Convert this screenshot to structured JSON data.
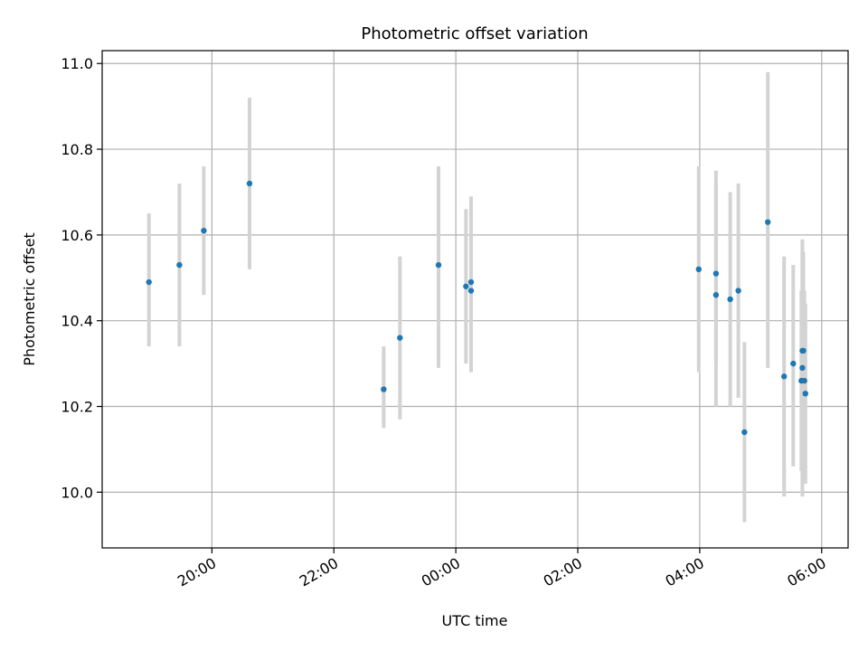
{
  "chart_data": {
    "type": "scatter",
    "title": "Photometric offset variation",
    "xlabel": "UTC time",
    "ylabel": "Photometric offset",
    "xlim": [
      "18:12",
      "06:26"
    ],
    "ylim": [
      9.87,
      11.03
    ],
    "grid": true,
    "x_ticks": [
      "20:00",
      "22:00",
      "00:00",
      "02:00",
      "04:00",
      "06:00"
    ],
    "y_ticks": [
      10.0,
      10.2,
      10.4,
      10.6,
      10.8,
      11.0
    ],
    "y_tick_labels": [
      "10.0",
      "10.2",
      "10.4",
      "10.6",
      "10.8",
      "11.0"
    ],
    "point_color": "#1f77b4",
    "errorbar_color": "#d3d3d3",
    "series": [
      {
        "points": [
          {
            "time": "18:58",
            "y": 10.49,
            "lo": 10.34,
            "hi": 10.65
          },
          {
            "time": "19:28",
            "y": 10.53,
            "lo": 10.34,
            "hi": 10.72
          },
          {
            "time": "19:52",
            "y": 10.61,
            "lo": 10.46,
            "hi": 10.76
          },
          {
            "time": "20:37",
            "y": 10.72,
            "lo": 10.52,
            "hi": 10.92
          },
          {
            "time": "22:49",
            "y": 10.24,
            "lo": 10.15,
            "hi": 10.34
          },
          {
            "time": "23:05",
            "y": 10.36,
            "lo": 10.17,
            "hi": 10.55
          },
          {
            "time": "23:43",
            "y": 10.53,
            "lo": 10.29,
            "hi": 10.76
          },
          {
            "time": "00:10",
            "y": 10.48,
            "lo": 10.3,
            "hi": 10.66
          },
          {
            "time": "00:15",
            "y": 10.47,
            "lo": 10.28,
            "hi": 10.68
          },
          {
            "time": "00:15",
            "y": 10.49,
            "lo": 10.3,
            "hi": 10.69
          },
          {
            "time": "03:59",
            "y": 10.52,
            "lo": 10.28,
            "hi": 10.76
          },
          {
            "time": "04:16",
            "y": 10.46,
            "lo": 10.2,
            "hi": 10.75
          },
          {
            "time": "04:16",
            "y": 10.51,
            "lo": 10.3,
            "hi": 10.72
          },
          {
            "time": "04:30",
            "y": 10.45,
            "lo": 10.2,
            "hi": 10.7
          },
          {
            "time": "04:38",
            "y": 10.47,
            "lo": 10.22,
            "hi": 10.72
          },
          {
            "time": "04:44",
            "y": 10.14,
            "lo": 9.93,
            "hi": 10.35
          },
          {
            "time": "05:07",
            "y": 10.63,
            "lo": 10.29,
            "hi": 10.98
          },
          {
            "time": "05:23",
            "y": 10.27,
            "lo": 9.99,
            "hi": 10.55
          },
          {
            "time": "05:32",
            "y": 10.3,
            "lo": 10.06,
            "hi": 10.53
          },
          {
            "time": "05:40",
            "y": 10.26,
            "lo": 10.05,
            "hi": 10.47
          },
          {
            "time": "05:41",
            "y": 10.33,
            "lo": 9.99,
            "hi": 10.59
          },
          {
            "time": "05:41",
            "y": 10.29,
            "lo": 10.02,
            "hi": 10.57
          },
          {
            "time": "05:42",
            "y": 10.33,
            "lo": 10.1,
            "hi": 10.56
          },
          {
            "time": "05:43",
            "y": 10.26,
            "lo": 10.05,
            "hi": 10.47
          },
          {
            "time": "05:44",
            "y": 10.23,
            "lo": 10.02,
            "hi": 10.44
          }
        ]
      }
    ]
  }
}
